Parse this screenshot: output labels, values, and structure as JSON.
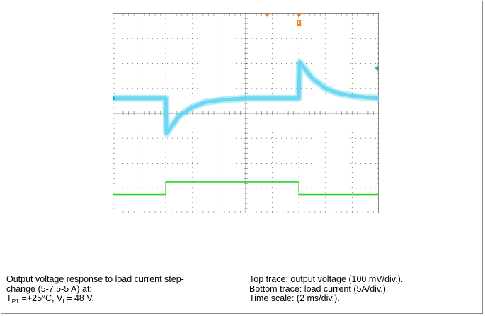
{
  "chart_data": {
    "type": "line",
    "title": "",
    "xlabel": "",
    "ylabel": "",
    "x_divisions": 10,
    "y_divisions": 8,
    "time_scale_ms_per_div": 2,
    "x_unit": "ms",
    "xlim": [
      0,
      20
    ],
    "series": [
      {
        "name": "Top trace: output voltage",
        "scale": "100 mV/div.",
        "unit": "mV",
        "color": "#5fd4ee",
        "x": [
          0,
          4,
          4.05,
          5,
          6,
          7,
          8,
          9,
          10,
          12,
          14,
          14.05,
          15,
          16,
          17,
          18,
          19,
          20
        ],
        "values": [
          0,
          0,
          -140,
          -70,
          -35,
          -15,
          -8,
          -3,
          0,
          0,
          0,
          145,
          80,
          40,
          20,
          10,
          4,
          0
        ]
      },
      {
        "name": "Bottom trace: load current",
        "scale": "5A/div.",
        "unit": "A",
        "color": "#2bd42b",
        "x": [
          0,
          4,
          4,
          14,
          14,
          20
        ],
        "values": [
          5,
          5,
          7.5,
          7.5,
          5,
          5
        ]
      }
    ]
  },
  "caption": {
    "left_line1": "Output voltage response to load current step-",
    "left_line2": "change (5-7.5-5 A) at:",
    "left_line3_t": "T",
    "left_line3_t_sub": "P1",
    "left_line3_rest": " =+25°C, V",
    "left_line3_v_sub": "I",
    "left_line3_end": " = 48 V.",
    "right_line1": "Top trace: output voltage (100 mV/div.).",
    "right_line2": "Bottom trace: load current (5A/div.).",
    "right_line3": "Time scale: (2 ms/div.)."
  },
  "colors": {
    "voltage_trace": "#5fd4ee",
    "current_trace": "#2bd42b",
    "trigger_marker": "#f0821e",
    "channel_marker": "#2aa6b8",
    "graticule": "#606060"
  }
}
